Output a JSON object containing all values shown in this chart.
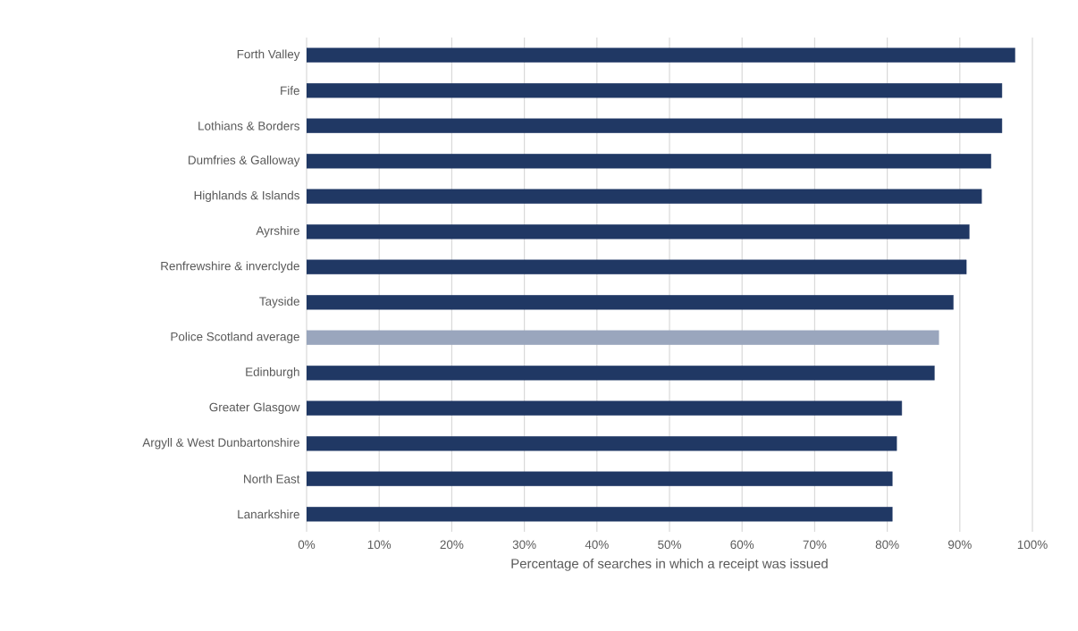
{
  "chart_data": {
    "type": "bar",
    "orientation": "horizontal",
    "xlabel": "Percentage of searches in which a receipt was issued",
    "categories": [
      "Forth Valley",
      "Fife",
      "Lothians & Borders",
      "Dumfries & Galloway",
      "Highlands & Islands",
      "Ayrshire",
      "Renfrewshire & inverclyde",
      "Tayside",
      "Police Scotland average",
      "Edinburgh",
      "Greater Glasgow",
      "Argyll & West Dunbartonshire",
      "North East",
      "Lanarkshire"
    ],
    "values": [
      97.6,
      95.8,
      95.8,
      94.3,
      93.0,
      91.3,
      90.9,
      89.1,
      87.1,
      86.5,
      82.0,
      81.3,
      80.7,
      80.7
    ],
    "colors": [
      "#203864",
      "#203864",
      "#203864",
      "#203864",
      "#203864",
      "#203864",
      "#203864",
      "#203864",
      "#9aa6bd",
      "#203864",
      "#203864",
      "#203864",
      "#203864",
      "#203864"
    ],
    "xlim": [
      0,
      100
    ],
    "xticks": [
      {
        "value": 0,
        "label": "0%"
      },
      {
        "value": 10,
        "label": "10%"
      },
      {
        "value": 20,
        "label": "20%"
      },
      {
        "value": 30,
        "label": "30%"
      },
      {
        "value": 40,
        "label": "40%"
      },
      {
        "value": 50,
        "label": "50%"
      },
      {
        "value": 60,
        "label": "60%"
      },
      {
        "value": 70,
        "label": "70%"
      },
      {
        "value": 80,
        "label": "80%"
      },
      {
        "value": 90,
        "label": "90%"
      },
      {
        "value": 100,
        "label": "100%"
      }
    ],
    "grid": "x"
  }
}
